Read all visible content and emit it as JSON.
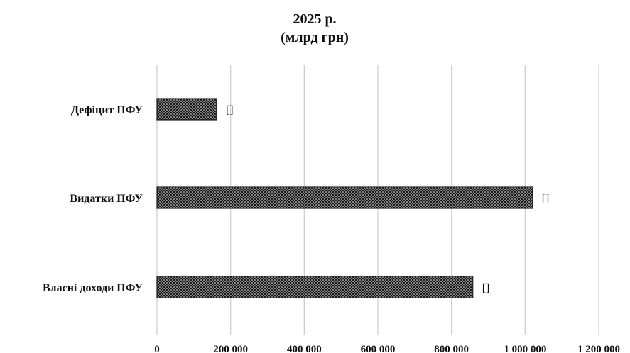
{
  "chart_data": {
    "type": "bar",
    "orientation": "horizontal",
    "title": "2025 р.",
    "subtitle": "(млрд грн)",
    "categories": [
      "Дефіцит ПФУ",
      "Видатки ПФУ",
      "Власні доходи ПФУ"
    ],
    "values": [
      162000,
      1020000,
      858000
    ],
    "data_labels": [
      "[]",
      "[]",
      "[]"
    ],
    "xlim": [
      0,
      1200000
    ],
    "x_ticks": [
      "0",
      "200 000",
      "400 000",
      "600 000",
      "800 000",
      "1 000 000",
      "1 200 000"
    ],
    "grid": true,
    "legend": "none",
    "bar_color": "#222222",
    "bar_pattern": "dotted"
  }
}
